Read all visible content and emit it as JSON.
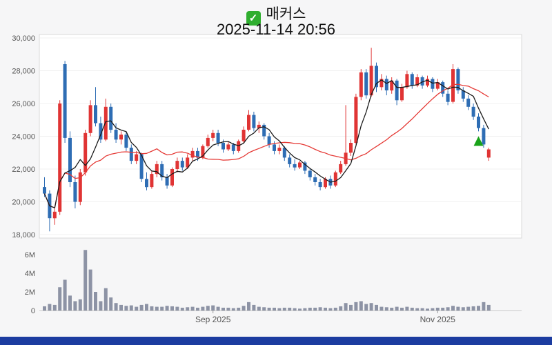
{
  "header": {
    "checkbox_glyph": "✓",
    "title": "매커스",
    "datetime": "2025-11-14 20:56"
  },
  "colors": {
    "up": "#e03434",
    "down": "#2e6db4",
    "ma_short": "#1a1a1a",
    "ma_long": "#e53935",
    "volume": "#8d93a5",
    "marker": "#19a319",
    "bottom_bar": "#1c3ca0",
    "checkbox_green": "#2fae2f",
    "page_bg": "#f6f6f7",
    "plot_bg": "#ffffff",
    "plot_border": "#d8d8d8",
    "grid": "#f0f0f0",
    "axis_text": "#555555"
  },
  "chart_data": {
    "type": "candlestick",
    "title": "매커스",
    "subtitle": "2025-11-14 20:56",
    "y_axis": {
      "min": 18000,
      "max": 30000,
      "ticks": [
        {
          "value": 18000,
          "label": "18,000"
        },
        {
          "value": 20000,
          "label": "20,000"
        },
        {
          "value": 22000,
          "label": "22,000"
        },
        {
          "value": 24000,
          "label": "24,000"
        },
        {
          "value": 26000,
          "label": "26,000"
        },
        {
          "value": 28000,
          "label": "28,000"
        },
        {
          "value": 30000,
          "label": "30,000"
        }
      ]
    },
    "volume_axis": {
      "min": 0,
      "max": 7000000,
      "ticks": [
        {
          "value": 0,
          "label": "0"
        },
        {
          "value": 2000000,
          "label": "2M"
        },
        {
          "value": 4000000,
          "label": "4M"
        },
        {
          "value": 6000000,
          "label": "6M"
        }
      ]
    },
    "x_ticks": [
      {
        "index": 33,
        "label": "Sep 2025"
      },
      {
        "index": 77,
        "label": "Nov 2025"
      }
    ],
    "overlays": {
      "ma_short_window": 5,
      "ma_long_window": 20
    },
    "marker": {
      "index": 85,
      "type": "up-triangle"
    },
    "candles_format": [
      "open",
      "high",
      "low",
      "close",
      "volume"
    ],
    "candles": [
      [
        20900,
        21500,
        20300,
        20500,
        450000
      ],
      [
        20500,
        20700,
        18200,
        19000,
        700000
      ],
      [
        19000,
        19600,
        18600,
        19400,
        600000
      ],
      [
        19400,
        26200,
        19200,
        26000,
        2500000
      ],
      [
        28400,
        28600,
        23600,
        23900,
        3300000
      ],
      [
        23900,
        24300,
        20900,
        21200,
        1600000
      ],
      [
        21200,
        21600,
        19600,
        20000,
        1000000
      ],
      [
        20000,
        22000,
        19800,
        21800,
        1200000
      ],
      [
        21800,
        24400,
        21600,
        24200,
        6500000
      ],
      [
        24200,
        26200,
        24000,
        25900,
        4400000
      ],
      [
        25900,
        27000,
        24600,
        24800,
        2000000
      ],
      [
        24800,
        25200,
        23600,
        23800,
        1000000
      ],
      [
        23800,
        26300,
        23700,
        25800,
        2400000
      ],
      [
        25800,
        26000,
        24200,
        24400,
        1400000
      ],
      [
        24400,
        24800,
        23600,
        23800,
        800000
      ],
      [
        23800,
        24300,
        23500,
        24100,
        600000
      ],
      [
        24100,
        24300,
        23100,
        23300,
        500000
      ],
      [
        23300,
        23500,
        22300,
        22500,
        550000
      ],
      [
        22500,
        23100,
        22300,
        22900,
        400000
      ],
      [
        22900,
        23000,
        21200,
        21400,
        600000
      ],
      [
        21400,
        21800,
        20700,
        20900,
        700000
      ],
      [
        20900,
        21900,
        20800,
        21700,
        450000
      ],
      [
        21700,
        22500,
        21500,
        22300,
        400000
      ],
      [
        22300,
        22500,
        21300,
        21500,
        400000
      ],
      [
        21500,
        21700,
        20800,
        21000,
        500000
      ],
      [
        21000,
        22100,
        20900,
        22000,
        450000
      ],
      [
        22000,
        22700,
        21800,
        22500,
        400000
      ],
      [
        22500,
        22700,
        21900,
        22100,
        300000
      ],
      [
        22100,
        22900,
        22000,
        22700,
        350000
      ],
      [
        22700,
        23300,
        22500,
        23100,
        400000
      ],
      [
        23100,
        23300,
        22500,
        22700,
        300000
      ],
      [
        22700,
        23500,
        22600,
        23400,
        400000
      ],
      [
        23400,
        24100,
        23300,
        23900,
        500000
      ],
      [
        23900,
        24400,
        23700,
        24200,
        550000
      ],
      [
        24200,
        24400,
        23400,
        23600,
        400000
      ],
      [
        23600,
        23800,
        23000,
        23200,
        300000
      ],
      [
        23200,
        23700,
        23100,
        23500,
        300000
      ],
      [
        23500,
        23600,
        22900,
        23100,
        250000
      ],
      [
        23100,
        23800,
        23000,
        23700,
        300000
      ],
      [
        23700,
        24600,
        23600,
        24400,
        500000
      ],
      [
        24400,
        25600,
        24300,
        25300,
        900000
      ],
      [
        25300,
        25500,
        24300,
        24500,
        600000
      ],
      [
        24500,
        24900,
        24200,
        24700,
        400000
      ],
      [
        24700,
        24800,
        23800,
        24000,
        350000
      ],
      [
        24000,
        24200,
        23300,
        23500,
        300000
      ],
      [
        23500,
        23700,
        22900,
        23100,
        300000
      ],
      [
        23100,
        23500,
        22900,
        23300,
        250000
      ],
      [
        23300,
        23400,
        22500,
        22700,
        300000
      ],
      [
        22700,
        22900,
        22100,
        22300,
        300000
      ],
      [
        22300,
        22600,
        21900,
        22100,
        250000
      ],
      [
        22100,
        22500,
        22000,
        22400,
        200000
      ],
      [
        22400,
        22500,
        21700,
        21900,
        250000
      ],
      [
        21900,
        22000,
        21300,
        21500,
        300000
      ],
      [
        21500,
        21700,
        21000,
        21200,
        300000
      ],
      [
        21200,
        21400,
        20700,
        20900,
        350000
      ],
      [
        20900,
        21500,
        20800,
        21400,
        300000
      ],
      [
        21400,
        21600,
        20800,
        21000,
        250000
      ],
      [
        21000,
        21900,
        20900,
        21800,
        300000
      ],
      [
        21800,
        22500,
        21700,
        22300,
        450000
      ],
      [
        22300,
        25900,
        22200,
        23000,
        800000
      ],
      [
        23000,
        23800,
        22800,
        23600,
        600000
      ],
      [
        23600,
        26600,
        23500,
        26400,
        900000
      ],
      [
        26400,
        28100,
        26200,
        27900,
        1000000
      ],
      [
        27900,
        28100,
        26300,
        26500,
        700000
      ],
      [
        26500,
        29400,
        26400,
        28300,
        800000
      ],
      [
        28300,
        28500,
        26700,
        27000,
        600000
      ],
      [
        27000,
        27800,
        26800,
        27500,
        400000
      ],
      [
        27500,
        27700,
        26500,
        26800,
        350000
      ],
      [
        26800,
        27600,
        26600,
        27400,
        300000
      ],
      [
        27400,
        27500,
        25900,
        26200,
        400000
      ],
      [
        26200,
        27200,
        26100,
        27000,
        300000
      ],
      [
        27000,
        28000,
        26900,
        27800,
        400000
      ],
      [
        27800,
        27900,
        26900,
        27100,
        300000
      ],
      [
        27100,
        27800,
        27000,
        27600,
        250000
      ],
      [
        27600,
        27700,
        26900,
        27100,
        250000
      ],
      [
        27100,
        27700,
        27000,
        27500,
        200000
      ],
      [
        27500,
        27600,
        26700,
        26900,
        250000
      ],
      [
        26900,
        27500,
        26800,
        27300,
        300000
      ],
      [
        27300,
        27400,
        26400,
        26600,
        300000
      ],
      [
        26600,
        26800,
        25900,
        26100,
        350000
      ],
      [
        26100,
        28400,
        26000,
        28100,
        500000
      ],
      [
        28100,
        28200,
        26600,
        26800,
        400000
      ],
      [
        26800,
        27000,
        26100,
        26300,
        350000
      ],
      [
        26300,
        26500,
        25600,
        25800,
        400000
      ],
      [
        25800,
        26000,
        25000,
        25200,
        450000
      ],
      [
        25200,
        25400,
        24300,
        24500,
        500000
      ],
      [
        24500,
        24700,
        23300,
        23500,
        900000
      ],
      [
        22700,
        23300,
        22500,
        23200,
        600000
      ]
    ]
  }
}
